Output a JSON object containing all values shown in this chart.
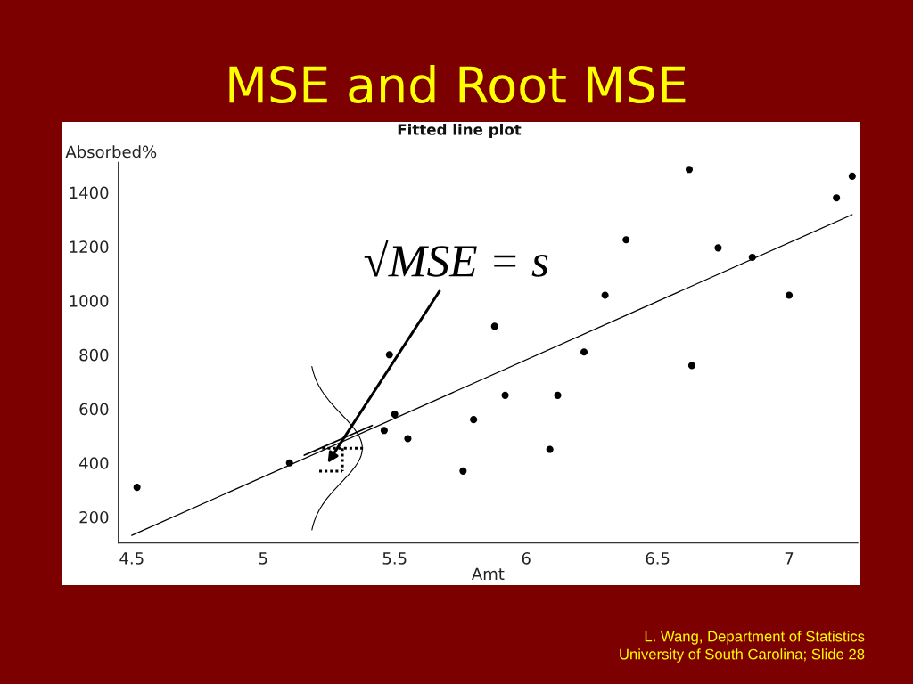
{
  "chart_data": {
    "type": "scatter",
    "title": "MSE and Root MSE",
    "subtitle": "Fitted line plot",
    "xlabel": "Amt",
    "ylabel": "Absorbed%",
    "series": [
      {
        "color": "#000000",
        "marker": "circle",
        "x": [
          4.52,
          5.1,
          5.46,
          5.48,
          5.5,
          5.55,
          5.76,
          5.8,
          5.88,
          5.92,
          6.09,
          6.12,
          6.22,
          6.3,
          6.38,
          6.62,
          6.63,
          6.73,
          6.86,
          7.0,
          7.18,
          7.24
        ],
        "values": [
          310,
          400,
          520,
          800,
          580,
          490,
          370,
          560,
          905,
          650,
          450,
          650,
          810,
          1020,
          1225,
          1485,
          760,
          1195,
          1160,
          1020,
          1380,
          1460
        ]
      },
      {
        "type": "line",
        "color": "#000000",
        "line_style": "solid",
        "x": [
          4.5,
          7.24
        ],
        "values": [
          132,
          1318
        ]
      }
    ],
    "xlim": [
      4.45,
      7.26
    ],
    "ylim": [
      105,
      1510
    ],
    "xticks": [
      4.5,
      5,
      5.5,
      6,
      6.5,
      7
    ],
    "yticks": [
      200,
      400,
      600,
      800,
      1000,
      1200,
      1400
    ],
    "grid": false,
    "annotations": [
      "√MSE = s",
      "L. Wang, Department of Statistics",
      "University of South Carolina; Slide 28"
    ]
  }
}
